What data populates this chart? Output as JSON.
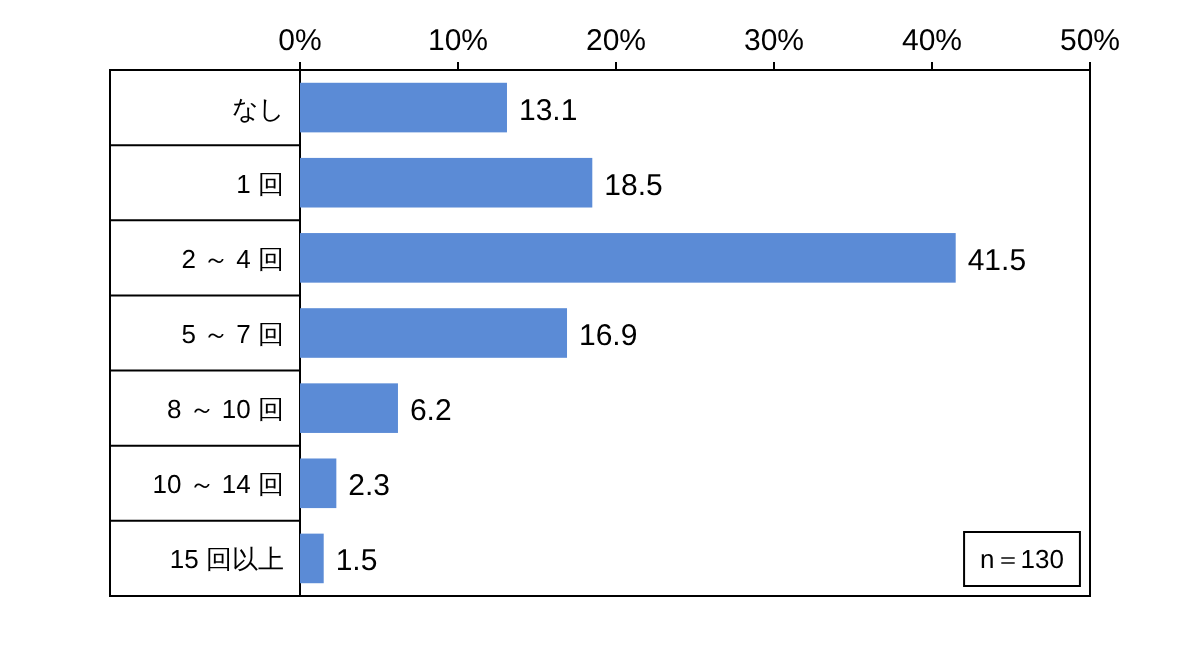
{
  "chart_data": {
    "type": "bar",
    "orientation": "horizontal",
    "categories": [
      "なし",
      "1 回",
      "2 ～ 4 回",
      "5 ～ 7 回",
      "8 ～ 10 回",
      "10 ～ 14 回",
      "15 回以上"
    ],
    "values": [
      13.1,
      18.5,
      41.5,
      16.9,
      6.2,
      2.3,
      1.5
    ],
    "color": "#5b8bd6",
    "xlim": [
      0,
      50
    ],
    "xticks": [
      {
        "value": 0,
        "label": "0%"
      },
      {
        "value": 10,
        "label": "10%"
      },
      {
        "value": 20,
        "label": "20%"
      },
      {
        "value": 30,
        "label": "30%"
      },
      {
        "value": 40,
        "label": "40%"
      },
      {
        "value": 50,
        "label": "50%"
      }
    ],
    "data_labels": true,
    "annotations": [
      "n＝130"
    ]
  }
}
